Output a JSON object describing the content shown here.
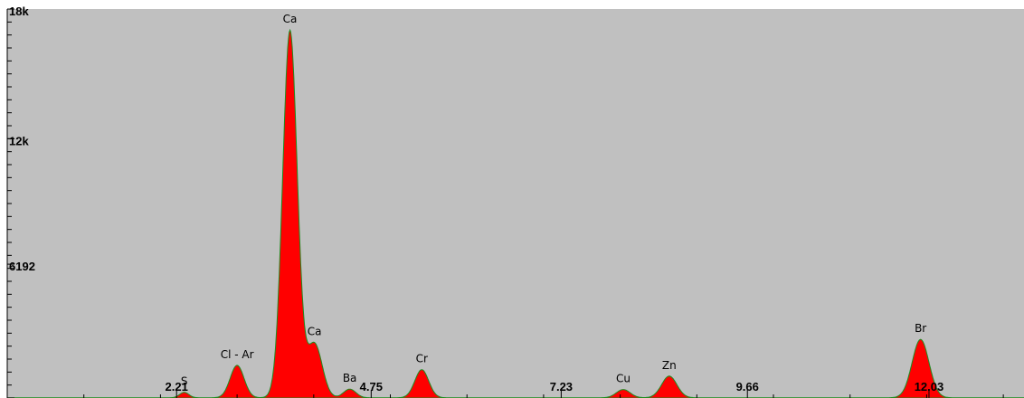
{
  "chart_data": {
    "type": "area",
    "x_unit": "keV",
    "xlim": [
      0,
      13.27
    ],
    "ylim": [
      0,
      18000
    ],
    "grid": false,
    "colors": {
      "fill": "#ff0000",
      "outline": "#1e8c1e",
      "background": "#c0c0c0",
      "axis": "#000000"
    },
    "y_tick_labels": [
      {
        "value": 18000,
        "label": "18k"
      },
      {
        "value": 12000,
        "label": "12k"
      },
      {
        "value": 6192,
        "label": "6192"
      }
    ],
    "x_tick_labels": [
      {
        "value": 2.21,
        "label": "2.21"
      },
      {
        "value": 4.75,
        "label": "4.75"
      },
      {
        "value": 7.23,
        "label": "7.23"
      },
      {
        "value": 9.66,
        "label": "9.66"
      },
      {
        "value": 12.03,
        "label": "12.03"
      }
    ],
    "peaks": [
      {
        "element": "S",
        "energy": 2.31,
        "counts": 250,
        "width": 0.06
      },
      {
        "element": "Cl - Ar",
        "energy": 3.0,
        "counts": 1500,
        "width": 0.09
      },
      {
        "element": "Ca",
        "energy": 3.69,
        "counts": 17000,
        "width": 0.095
      },
      {
        "element": "Ca",
        "energy": 4.01,
        "counts": 2500,
        "width": 0.1
      },
      {
        "element": "Ba",
        "energy": 4.47,
        "counts": 400,
        "width": 0.08
      },
      {
        "element": "Cr",
        "energy": 5.41,
        "counts": 1300,
        "width": 0.09
      },
      {
        "element": "Cu",
        "energy": 8.04,
        "counts": 380,
        "width": 0.09
      },
      {
        "element": "Zn",
        "energy": 8.64,
        "counts": 1000,
        "width": 0.1
      },
      {
        "element": "Br",
        "energy": 11.92,
        "counts": 2700,
        "width": 0.11
      }
    ]
  }
}
